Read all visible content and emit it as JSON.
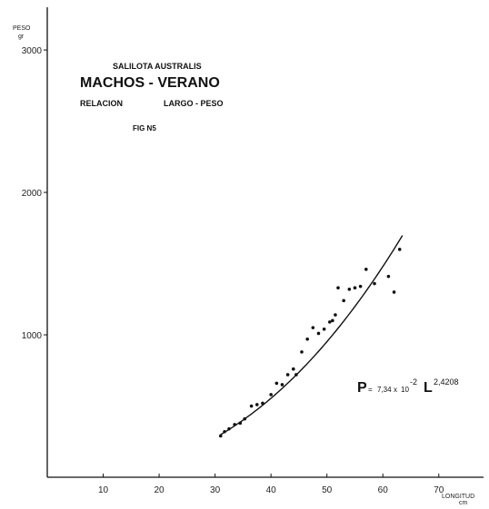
{
  "chart_data": {
    "type": "scatter",
    "title": "SALILOTA AUSTRALIS",
    "subtitle": "MACHOS - VERANO",
    "relation": {
      "left": "RELACION",
      "right": "LARGO - PESO"
    },
    "fig_label": "FIG N5",
    "xlabel": "LONGITUD",
    "xunit": "cm",
    "ylabel": "PESO",
    "yunit": "gr",
    "xlim": [
      0,
      78
    ],
    "ylim": [
      0,
      3300
    ],
    "xticks": [
      "10",
      "20",
      "30",
      "40",
      "50",
      "60",
      "70"
    ],
    "yticks": [
      "1000",
      "2000",
      "3000"
    ],
    "grid": false,
    "series": [
      {
        "x": [
          31,
          31.7,
          32.5,
          33.5,
          34.5,
          35.3,
          36.5,
          37.5,
          38.5,
          40,
          41,
          42,
          43,
          44,
          44.5,
          45.5,
          46.5,
          47.5,
          48.5,
          49.5,
          50.5,
          51,
          51.5,
          52,
          53,
          54,
          55,
          56,
          57,
          58.5,
          61,
          62,
          63
        ],
        "y": [
          290,
          320,
          340,
          370,
          380,
          410,
          500,
          510,
          520,
          580,
          660,
          650,
          720,
          760,
          720,
          880,
          970,
          1050,
          1010,
          1040,
          1090,
          1100,
          1140,
          1330,
          1240,
          1320,
          1330,
          1340,
          1460,
          1360,
          1410,
          1300,
          1600
        ]
      }
    ],
    "fit": {
      "a": 0.0734,
      "b": 2.4208,
      "x_range": [
        31,
        63.5
      ],
      "equation": {
        "lhs": "P",
        "eq_sign": "=",
        "coef": "7,34",
        "times": "x",
        "base": "10",
        "exp": "-2",
        "var": "L",
        "power": "2,4208"
      }
    }
  }
}
